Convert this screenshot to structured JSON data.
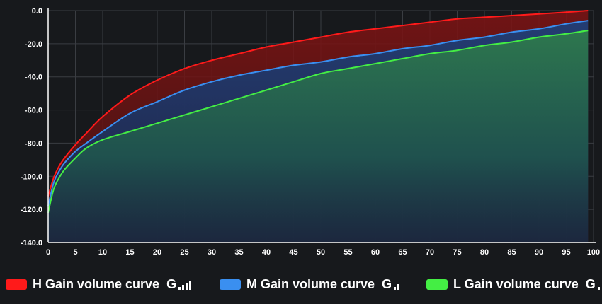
{
  "chart_data": {
    "type": "area",
    "x_ticks": [
      0,
      5,
      10,
      15,
      20,
      25,
      30,
      35,
      40,
      45,
      50,
      55,
      60,
      65,
      70,
      75,
      80,
      85,
      90,
      95,
      100
    ],
    "y_ticks": [
      0,
      -20,
      -40,
      -60,
      -80,
      -100,
      -120,
      -140
    ],
    "y_tick_labels": [
      "0.0",
      "-20.0",
      "-40.0",
      "-60.0",
      "-80.0",
      "-100.0",
      "-120.0",
      "-140.0"
    ],
    "xlim": [
      0,
      100
    ],
    "ylim": [
      -140,
      0
    ],
    "grid": true,
    "legend_position": "bottom",
    "series": [
      {
        "name": "H Gain volume curve",
        "color": "#ff1a1a",
        "gain_bars": 4,
        "x": [
          0,
          1,
          2,
          3,
          5,
          7,
          10,
          15,
          20,
          25,
          30,
          35,
          40,
          45,
          50,
          55,
          60,
          65,
          70,
          75,
          80,
          85,
          90,
          95,
          99
        ],
        "y": [
          -112,
          -101,
          -94,
          -89,
          -81,
          -74,
          -64,
          -51,
          -42,
          -35,
          -30,
          -26,
          -22,
          -19,
          -16,
          -13,
          -11,
          -9,
          -7,
          -5,
          -4,
          -3,
          -2,
          -1,
          0
        ]
      },
      {
        "name": "M Gain volume curve",
        "color": "#3a8ff0",
        "gain_bars": 2,
        "x": [
          0,
          1,
          2,
          3,
          5,
          7,
          10,
          15,
          20,
          25,
          30,
          35,
          40,
          45,
          50,
          55,
          60,
          65,
          70,
          75,
          80,
          85,
          90,
          95,
          99
        ],
        "y": [
          -118,
          -104,
          -97,
          -92,
          -85,
          -80,
          -73,
          -62,
          -55,
          -48,
          -43,
          -39,
          -36,
          -33,
          -31,
          -28,
          -26,
          -23,
          -21,
          -18,
          -16,
          -13,
          -11,
          -8,
          -6
        ]
      },
      {
        "name": "L Gain volume curve",
        "color": "#44ee44",
        "gain_bars": 1,
        "x": [
          0,
          1,
          2,
          3,
          5,
          7,
          10,
          15,
          20,
          25,
          30,
          35,
          40,
          45,
          50,
          55,
          60,
          65,
          70,
          75,
          80,
          85,
          90,
          95,
          99
        ],
        "y": [
          -122,
          -108,
          -101,
          -96,
          -89,
          -83,
          -78,
          -73,
          -68,
          -63,
          -58,
          -53,
          -48,
          -43,
          -38,
          -35,
          -32,
          -29,
          -26,
          -24,
          -21,
          -19,
          -16,
          -14,
          -12
        ]
      }
    ]
  },
  "legend": {
    "items": [
      {
        "label": "H Gain volume curve",
        "icon_text": "G"
      },
      {
        "label": "M Gain volume curve",
        "icon_text": "G"
      },
      {
        "label": "L Gain volume curve",
        "icon_text": "G"
      }
    ]
  }
}
